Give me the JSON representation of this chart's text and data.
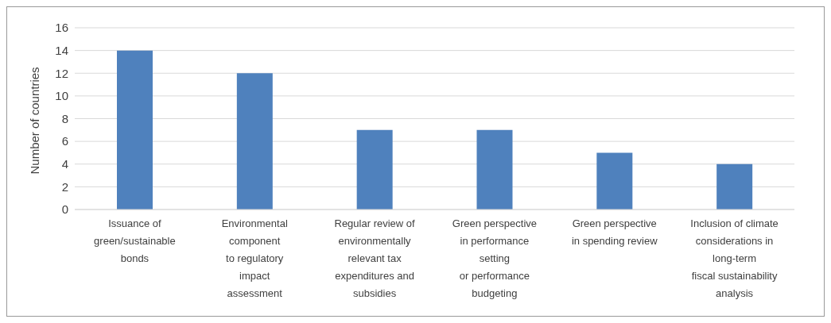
{
  "chart_data": {
    "type": "bar",
    "ylabel": "Number of countries",
    "categories": [
      "Issuance of\ngreen/sustainable\nbonds",
      "Environmental\ncomponent\nto regulatory\nimpact\nassessment",
      "Regular review of\nenvironmentally\nrelevant tax\nexpenditures and\nsubsidies",
      "Green perspective\nin performance\nsetting\nor performance\nbudgeting",
      "Green perspective\nin spending review",
      "Inclusion of climate\nconsiderations in\nlong-term\nfiscal sustainability\nanalysis"
    ],
    "values": [
      14,
      12,
      7,
      7,
      5,
      4
    ],
    "color": "#4f81bd",
    "ylim": [
      0,
      16
    ],
    "yticks": [
      0,
      2,
      4,
      6,
      8,
      10,
      12,
      14,
      16
    ],
    "grid": "y"
  }
}
